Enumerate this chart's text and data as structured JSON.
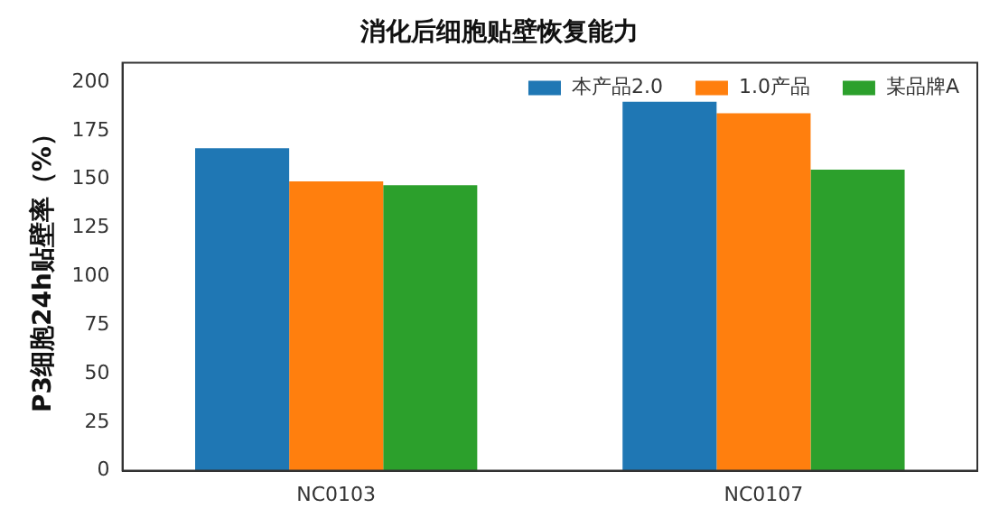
{
  "chart_data": {
    "type": "bar",
    "title": "消化后细胞贴壁恢复能力",
    "ylabel": "P3细胞24h贴壁率（%）",
    "categories": [
      "NC0103",
      "NC0107"
    ],
    "series": [
      {
        "name": "本产品2.0",
        "color": "#1f77b4",
        "values": [
          166,
          190
        ]
      },
      {
        "name": "1.0产品",
        "color": "#ff7f0e",
        "values": [
          149,
          184
        ]
      },
      {
        "name": "某品牌A",
        "color": "#2ca02c",
        "values": [
          147,
          155
        ]
      }
    ],
    "ylim": [
      0,
      210
    ],
    "yticks": [
      0,
      25,
      50,
      75,
      100,
      125,
      150,
      175,
      200
    ],
    "grid": false,
    "legend": "top right"
  }
}
